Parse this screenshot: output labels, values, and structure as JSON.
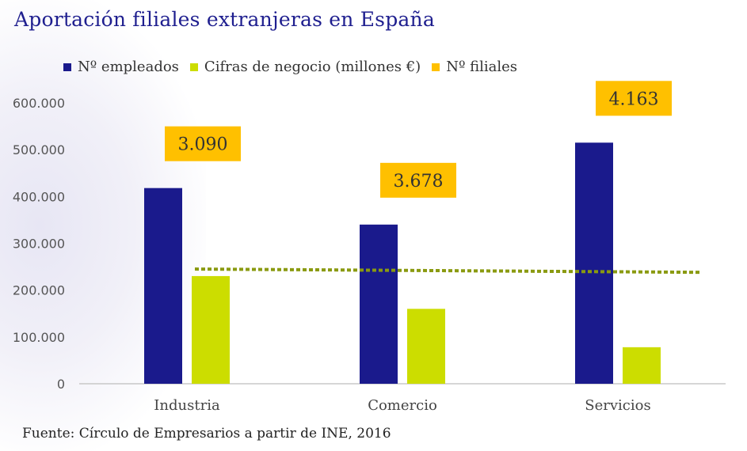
{
  "title": "Aportación  filiales  extranjeras  en  España",
  "source": "Fuente: Círculo de Empresarios a partir de INE, 2016",
  "colors": {
    "empleados": "#1a1a8c",
    "negocio": "#ccdd00",
    "filiales": "#ffc000",
    "trend": "#8a9a10"
  },
  "chart_data": {
    "type": "bar",
    "categories": [
      "Industria",
      "Comercio",
      "Servicios"
    ],
    "series": [
      {
        "name": "Nº empleados",
        "values": [
          418000,
          340000,
          515000
        ]
      },
      {
        "name": "Cifras de negocio (millones €)",
        "values": [
          230000,
          160000,
          78000
        ]
      }
    ],
    "filiales": {
      "name": "Nº filiales",
      "values": [
        3090,
        3678,
        4163
      ],
      "labels": [
        "3.090",
        "3.678",
        "4.163"
      ]
    },
    "trendline": {
      "start": 245000,
      "end": 238000,
      "style": "dotted"
    },
    "ylim": [
      0,
      600000
    ],
    "yticks": [
      0,
      100000,
      200000,
      300000,
      400000,
      500000,
      600000
    ],
    "ytick_labels": [
      "0",
      "100.000",
      "200.000",
      "300.000",
      "400.000",
      "500.000",
      "600.000"
    ],
    "legend": [
      "Nº empleados",
      "Cifras de negocio (millones €)",
      "Nº filiales"
    ],
    "legend_position": "top-left"
  }
}
